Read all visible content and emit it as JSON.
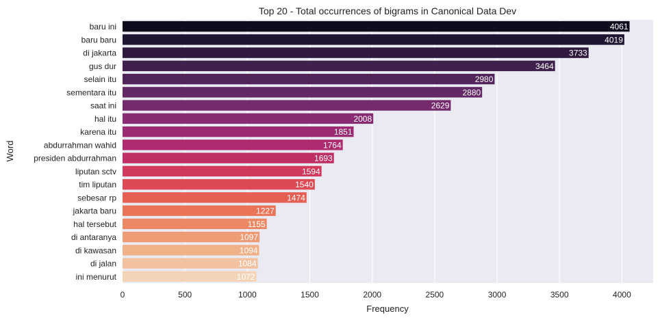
{
  "chart_data": {
    "type": "bar",
    "orientation": "horizontal",
    "title": "Top 20 - Total occurrences of bigrams in Canonical Data Dev",
    "xlabel": "Frequency",
    "ylabel": "Word",
    "xlim": [
      0,
      4250
    ],
    "xticks": [
      0,
      500,
      1000,
      1500,
      2000,
      2500,
      3000,
      3500,
      4000
    ],
    "grid": true,
    "colormap": "rocket",
    "categories": [
      "baru ini",
      "baru baru",
      "di jakarta",
      "gus dur",
      "selain itu",
      "sementara itu",
      "saat ini",
      "hal itu",
      "karena itu",
      "abdurrahman wahid",
      "presiden abdurrahman",
      "liputan sctv",
      "tim liputan",
      "sebesar rp",
      "jakarta baru",
      "hal tersebut",
      "di antaranya",
      "di kawasan",
      "di jalan",
      "ini menurut"
    ],
    "values": [
      4061,
      4019,
      3733,
      3464,
      2980,
      2880,
      2629,
      2008,
      1851,
      1764,
      1693,
      1594,
      1540,
      1474,
      1227,
      1155,
      1097,
      1094,
      1084,
      1072
    ],
    "colors": [
      "#0f0c1d",
      "#1e1530",
      "#2f1a3e",
      "#40204c",
      "#51245a",
      "#632866",
      "#752a6e",
      "#882b72",
      "#9b2b73",
      "#ae2b6f",
      "#c02e66",
      "#d0385c",
      "#dd4a55",
      "#e55f52",
      "#e97458",
      "#ec8863",
      "#ee9c73",
      "#f0b088",
      "#f2c2a0",
      "#f4d4b9"
    ]
  }
}
